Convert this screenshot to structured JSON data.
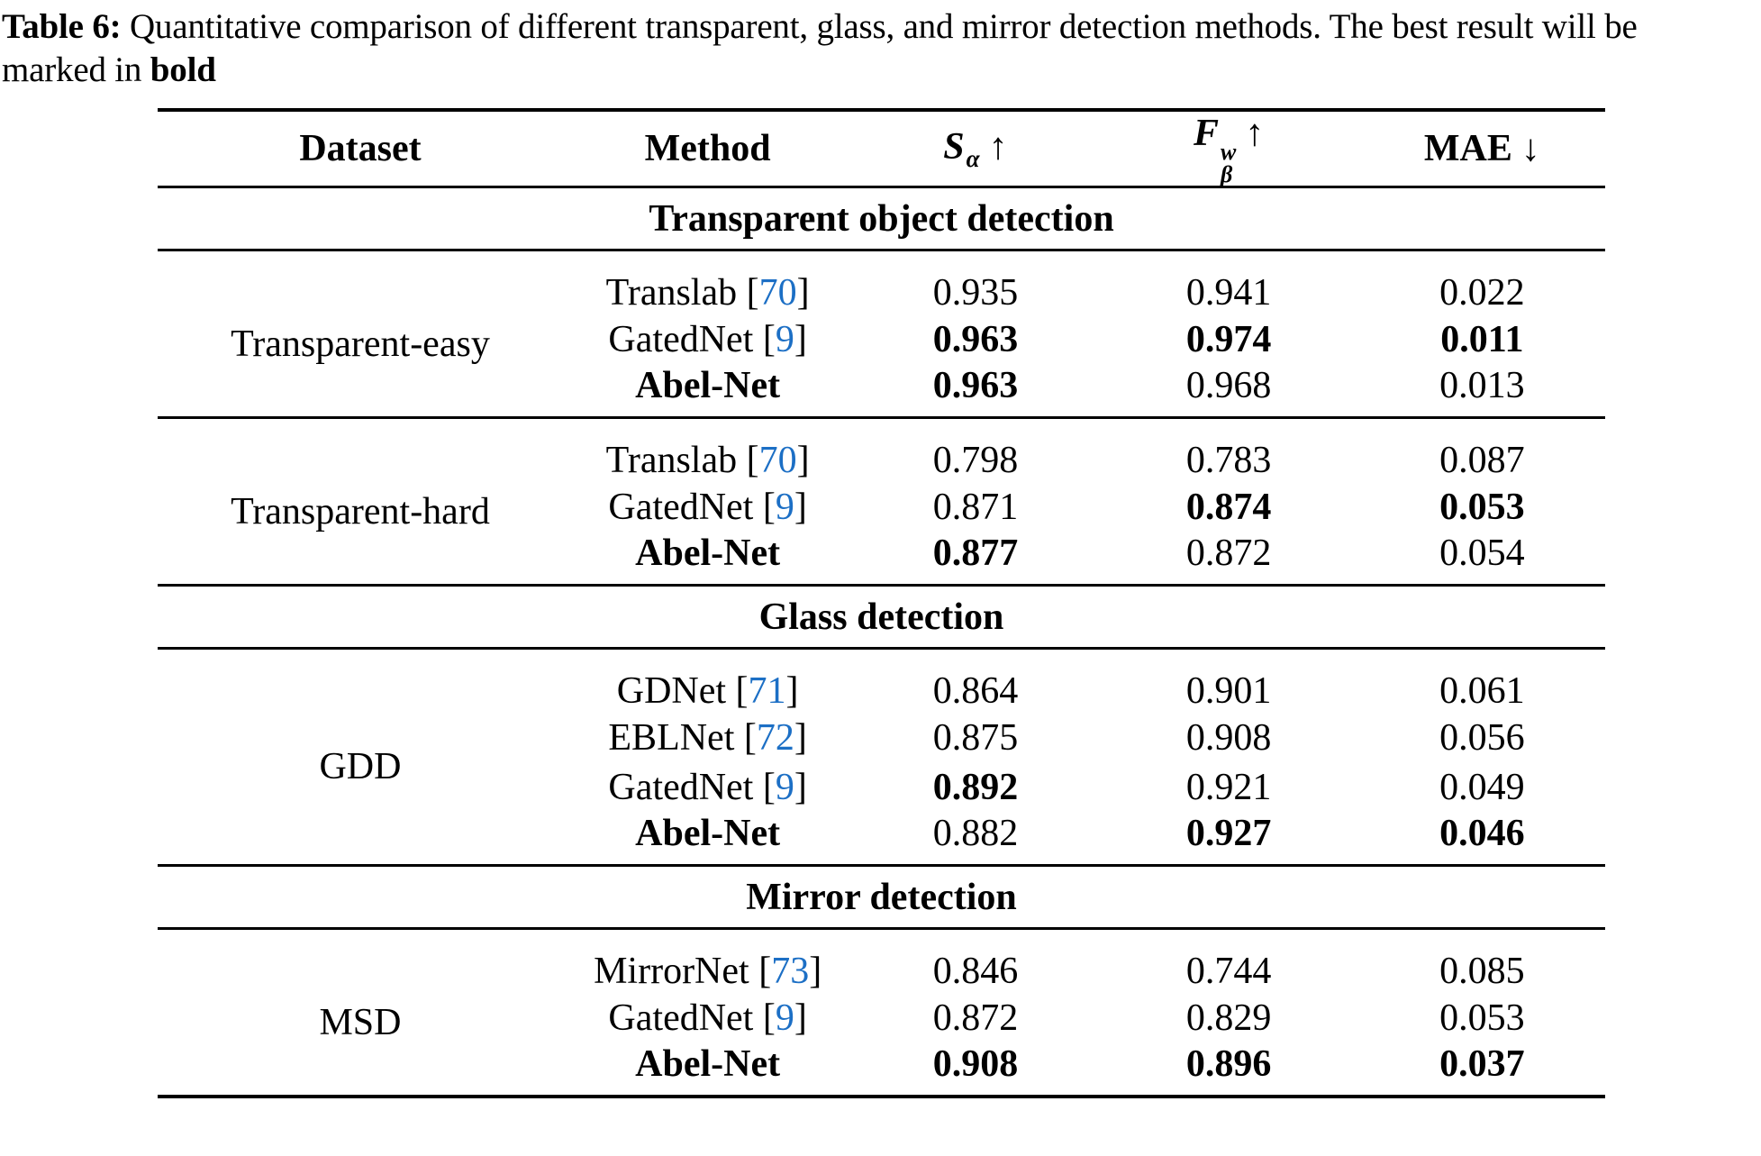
{
  "caption": {
    "label": "Table 6:",
    "line1": " Quantitative comparison of different transparent, glass, and mirror detection methods. The best result will be",
    "line2": "marked in ",
    "line2_bold": "bold"
  },
  "link_color": "#1c6fc5",
  "table": {
    "columns": {
      "dataset": "Dataset",
      "method": "Method",
      "s_alpha": {
        "base": "S",
        "sub": "α",
        "arrow": "↑"
      },
      "f_beta": {
        "base": "F",
        "sup": "w",
        "sub": "β",
        "arrow": "↑"
      },
      "mae": {
        "base": "MAE",
        "arrow": "↓"
      }
    },
    "sections": [
      {
        "title": "Transparent object detection",
        "groups": [
          {
            "dataset": "Transparent-easy",
            "rows": [
              {
                "method": "Translab",
                "cite": "70",
                "method_bold": false,
                "sa": "0.935",
                "fb": "0.941",
                "mae": "0.022",
                "bold": []
              },
              {
                "method": "GatedNet",
                "cite": "9",
                "method_bold": false,
                "sa": "0.963",
                "fb": "0.974",
                "mae": "0.011",
                "bold": [
                  "sa",
                  "fb",
                  "mae"
                ]
              },
              {
                "method": "Abel-Net",
                "cite": null,
                "method_bold": true,
                "sa": "0.963",
                "fb": "0.968",
                "mae": "0.013",
                "bold": [
                  "sa"
                ]
              }
            ]
          },
          {
            "dataset": "Transparent-hard",
            "rows": [
              {
                "method": "Translab",
                "cite": "70",
                "method_bold": false,
                "sa": "0.798",
                "fb": "0.783",
                "mae": "0.087",
                "bold": []
              },
              {
                "method": "GatedNet",
                "cite": "9",
                "method_bold": false,
                "sa": "0.871",
                "fb": "0.874",
                "mae": "0.053",
                "bold": [
                  "fb",
                  "mae"
                ]
              },
              {
                "method": "Abel-Net",
                "cite": null,
                "method_bold": true,
                "sa": "0.877",
                "fb": "0.872",
                "mae": "0.054",
                "bold": [
                  "sa"
                ]
              }
            ]
          }
        ]
      },
      {
        "title": "Glass detection",
        "groups": [
          {
            "dataset": "GDD",
            "rows": [
              {
                "method": "GDNet",
                "cite": "71",
                "method_bold": false,
                "sa": "0.864",
                "fb": "0.901",
                "mae": "0.061",
                "bold": []
              },
              {
                "method": "EBLNet",
                "cite": "72",
                "method_bold": false,
                "sa": "0.875",
                "fb": "0.908",
                "mae": "0.056",
                "bold": []
              },
              {
                "method": "GatedNet",
                "cite": "9",
                "method_bold": false,
                "sa": "0.892",
                "fb": "0.921",
                "mae": "0.049",
                "bold": [
                  "sa"
                ]
              },
              {
                "method": "Abel-Net",
                "cite": null,
                "method_bold": true,
                "sa": "0.882",
                "fb": "0.927",
                "mae": "0.046",
                "bold": [
                  "fb",
                  "mae"
                ]
              }
            ]
          }
        ]
      },
      {
        "title": "Mirror detection",
        "groups": [
          {
            "dataset": "MSD",
            "rows": [
              {
                "method": "MirrorNet",
                "cite": "73",
                "method_bold": false,
                "sa": "0.846",
                "fb": "0.744",
                "mae": "0.085",
                "bold": []
              },
              {
                "method": "GatedNet",
                "cite": "9",
                "method_bold": false,
                "sa": "0.872",
                "fb": "0.829",
                "mae": "0.053",
                "bold": []
              },
              {
                "method": "Abel-Net",
                "cite": null,
                "method_bold": true,
                "sa": "0.908",
                "fb": "0.896",
                "mae": "0.037",
                "bold": [
                  "sa",
                  "fb",
                  "mae"
                ]
              }
            ]
          }
        ]
      }
    ]
  }
}
